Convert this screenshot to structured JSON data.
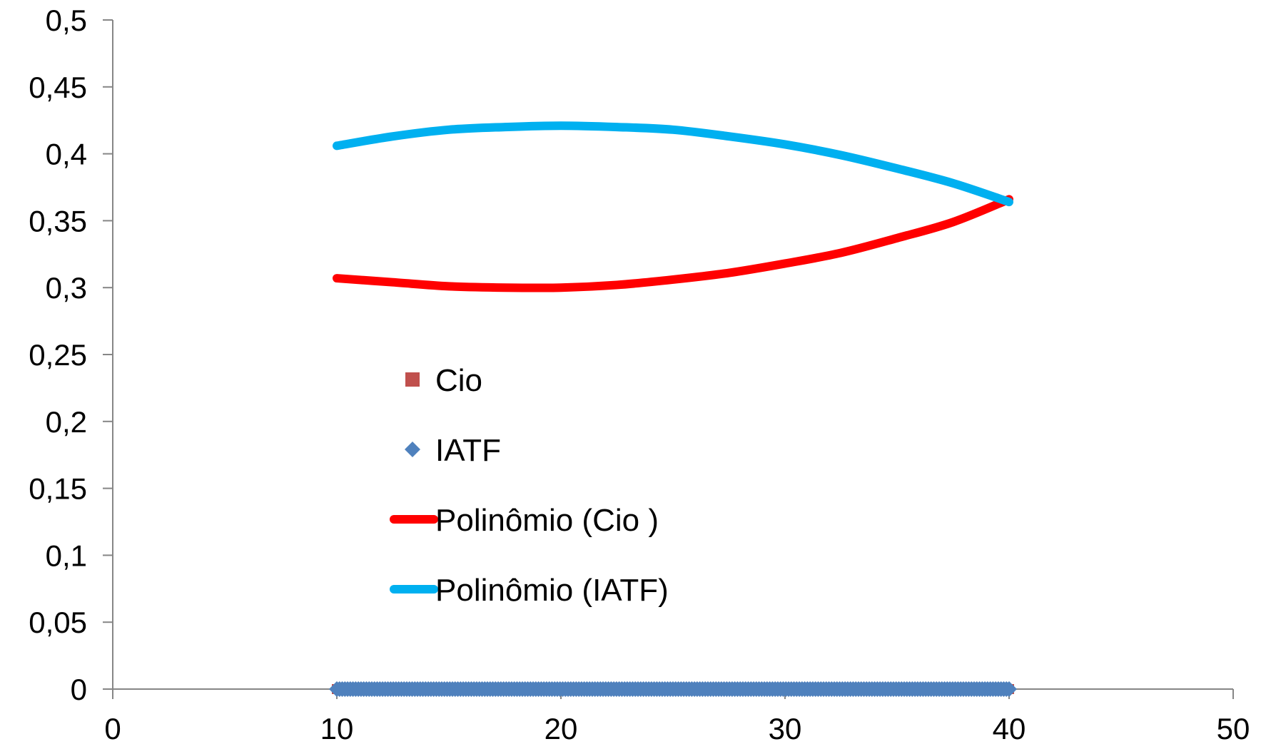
{
  "chart_data": {
    "type": "scatter",
    "title": "",
    "xlabel": "",
    "ylabel": "",
    "xlim": [
      0,
      50
    ],
    "ylim": [
      0,
      0.5
    ],
    "x_ticks": [
      "0",
      "10",
      "20",
      "30",
      "40",
      "50"
    ],
    "y_ticks": [
      "0",
      "0,05",
      "0,1",
      "0,15",
      "0,2",
      "0,25",
      "0,3",
      "0,35",
      "0,4",
      "0,45",
      "0,5"
    ],
    "grid": false,
    "legend_position": "center",
    "series": [
      {
        "name": "Cio",
        "kind": "points",
        "marker": "square",
        "color": "#C0504D",
        "x_range": [
          10,
          40
        ],
        "y_value": 0
      },
      {
        "name": "IATF",
        "kind": "points",
        "marker": "diamond",
        "color": "#4F81BD",
        "x_range": [
          10,
          40
        ],
        "y_value": 0
      },
      {
        "name": "Polinômio (Cio )",
        "kind": "trendline",
        "color": "#FF0000",
        "x": [
          10,
          12.5,
          15,
          17.5,
          20,
          22.5,
          25,
          27.5,
          30,
          32.5,
          35,
          37.5,
          40
        ],
        "y": [
          0.307,
          0.304,
          0.301,
          0.3,
          0.3,
          0.302,
          0.306,
          0.311,
          0.318,
          0.326,
          0.337,
          0.349,
          0.366
        ]
      },
      {
        "name": "Polinômio (IATF)",
        "kind": "trendline",
        "color": "#00B0F0",
        "x": [
          10,
          12.5,
          15,
          17.5,
          20,
          22.5,
          25,
          27.5,
          30,
          32.5,
          35,
          37.5,
          40
        ],
        "y": [
          0.406,
          0.413,
          0.418,
          0.42,
          0.421,
          0.42,
          0.418,
          0.413,
          0.407,
          0.399,
          0.389,
          0.378,
          0.364
        ]
      }
    ]
  }
}
